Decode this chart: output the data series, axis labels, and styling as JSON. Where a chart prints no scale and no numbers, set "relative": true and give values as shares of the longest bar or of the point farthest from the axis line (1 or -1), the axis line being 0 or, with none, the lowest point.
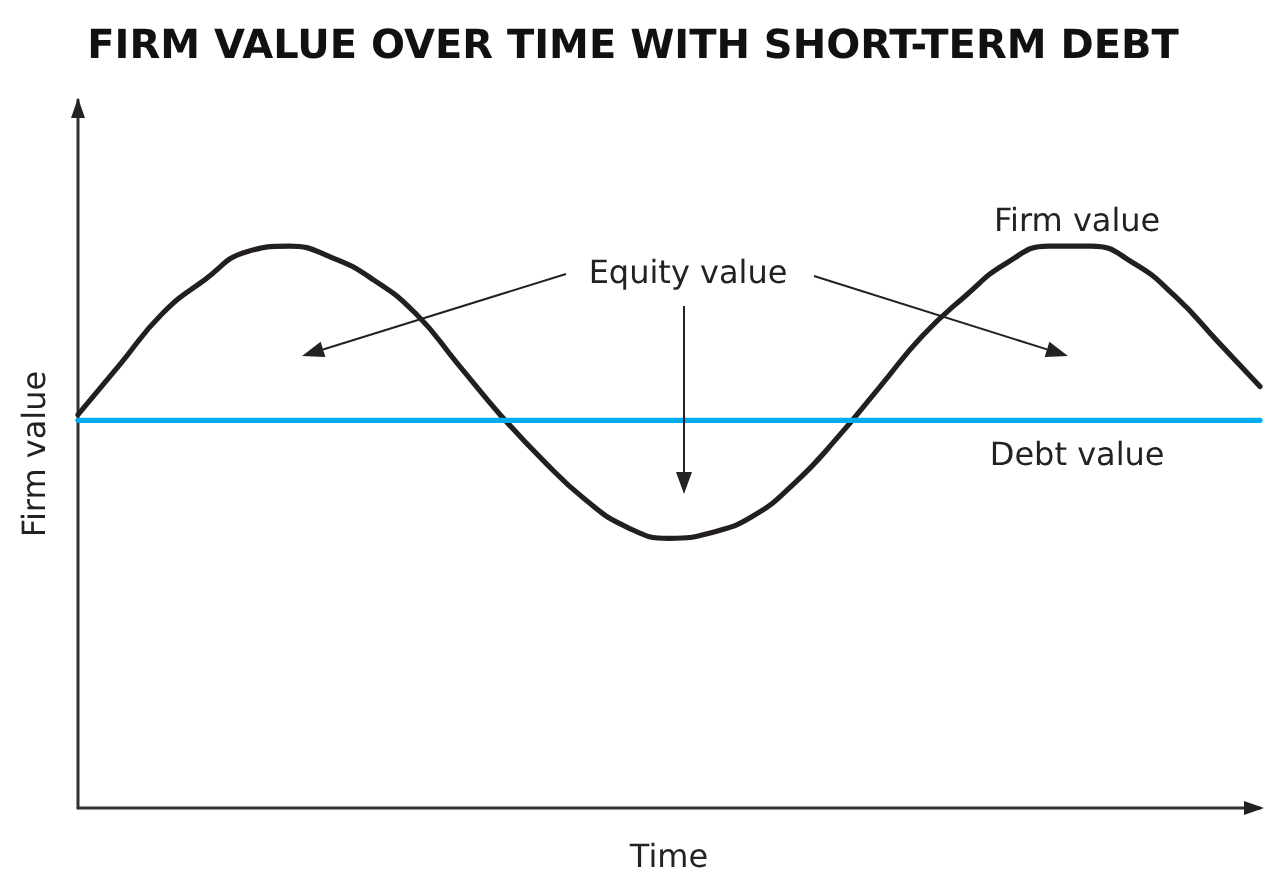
{
  "chart_data": {
    "type": "line",
    "title": "FIRM VALUE OVER TIME WITH SHORT-TERM DEBT",
    "xlabel": "Time",
    "ylabel": "Firm value",
    "relative": true,
    "marker": "none",
    "line_style": "solid",
    "annotations": [
      "Equity value"
    ],
    "categories": [
      null,
      null,
      null,
      null,
      null,
      null,
      null,
      null,
      null,
      null,
      null,
      null,
      null,
      null,
      null,
      null,
      null,
      null,
      null,
      null,
      null,
      null,
      null,
      null,
      null,
      null,
      null,
      null,
      null
    ],
    "series": [
      {
        "name": "Firm value",
        "color": "#231f20",
        "values": [
          0.7,
          0.79,
          0.88,
          0.94,
          0.99,
          1.0,
          0.98,
          0.94,
          0.88,
          0.79,
          0.7,
          0.62,
          0.55,
          0.5,
          0.48,
          0.49,
          0.52,
          0.58,
          0.66,
          0.75,
          0.84,
          0.91,
          0.97,
          1.0,
          1.0,
          0.97,
          0.91,
          0.83,
          0.75
        ]
      },
      {
        "name": "Debt value",
        "color": "#00aeef",
        "values": [
          0.69,
          0.69,
          0.69,
          0.69,
          0.69,
          0.69,
          0.69,
          0.69,
          0.69,
          0.69,
          0.69,
          0.69,
          0.69,
          0.69,
          0.69,
          0.69,
          0.69,
          0.69,
          0.69,
          0.69,
          0.69,
          0.69,
          0.69,
          0.69,
          0.69,
          0.69,
          0.69,
          0.69,
          0.69
        ]
      }
    ]
  }
}
